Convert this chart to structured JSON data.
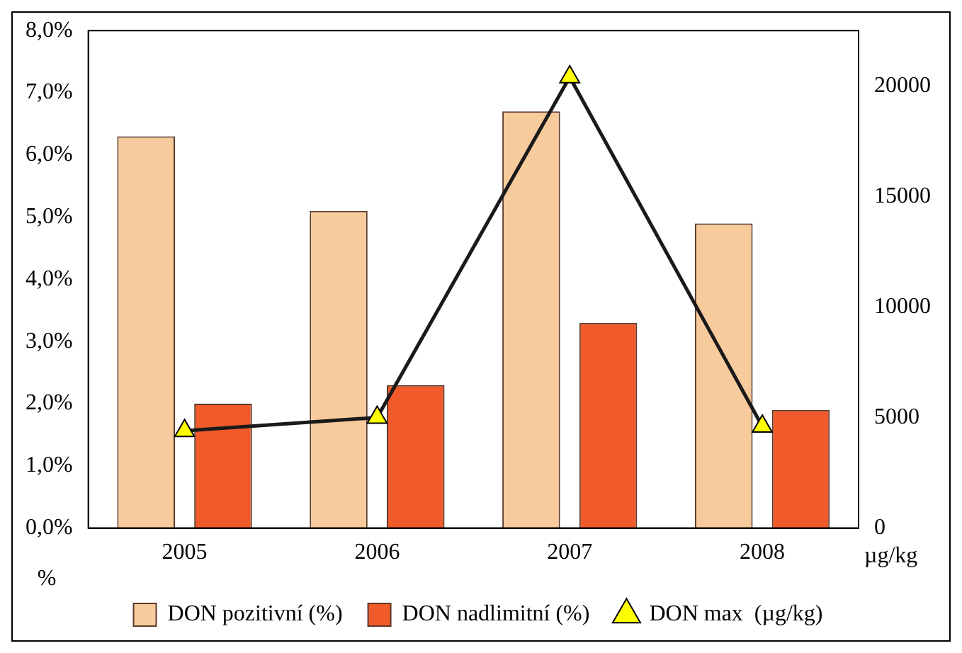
{
  "chart_data": {
    "type": "bar",
    "categories": [
      "2005",
      "2006",
      "2007",
      "2008"
    ],
    "series": [
      {
        "name": "DON pozitivní (%)",
        "color": "#f8cb9c",
        "values": [
          6.3,
          5.1,
          6.7,
          4.9
        ]
      },
      {
        "name": "DON nadlimitní (%)",
        "color": "#f15a2b",
        "values": [
          2.0,
          2.3,
          3.3,
          1.9
        ]
      },
      {
        "name": "DON max  (µg/kg)",
        "type": "line",
        "axis": "y2",
        "color": "#1a1a1a",
        "marker": "triangle",
        "values": [
          4400,
          5000,
          20400,
          4600
        ]
      }
    ],
    "ylabel": "%",
    "y2label": "µg/kg",
    "ylim": [
      0,
      8
    ],
    "yticks": [
      {
        "value": 0,
        "label": "0,0%"
      },
      {
        "value": 1,
        "label": "1,0%"
      },
      {
        "value": 2,
        "label": "2,0%"
      },
      {
        "value": 3,
        "label": "3,0%"
      },
      {
        "value": 4,
        "label": "4,0%"
      },
      {
        "value": 5,
        "label": "5,0%"
      },
      {
        "value": 6,
        "label": "6,0%"
      },
      {
        "value": 7,
        "label": "7,0%"
      },
      {
        "value": 8,
        "label": "8,0%"
      }
    ],
    "y2lim": [
      0,
      22500
    ],
    "y2ticks": [
      0,
      5000,
      10000,
      15000,
      20000
    ],
    "grid": false,
    "legend": "bottom"
  }
}
